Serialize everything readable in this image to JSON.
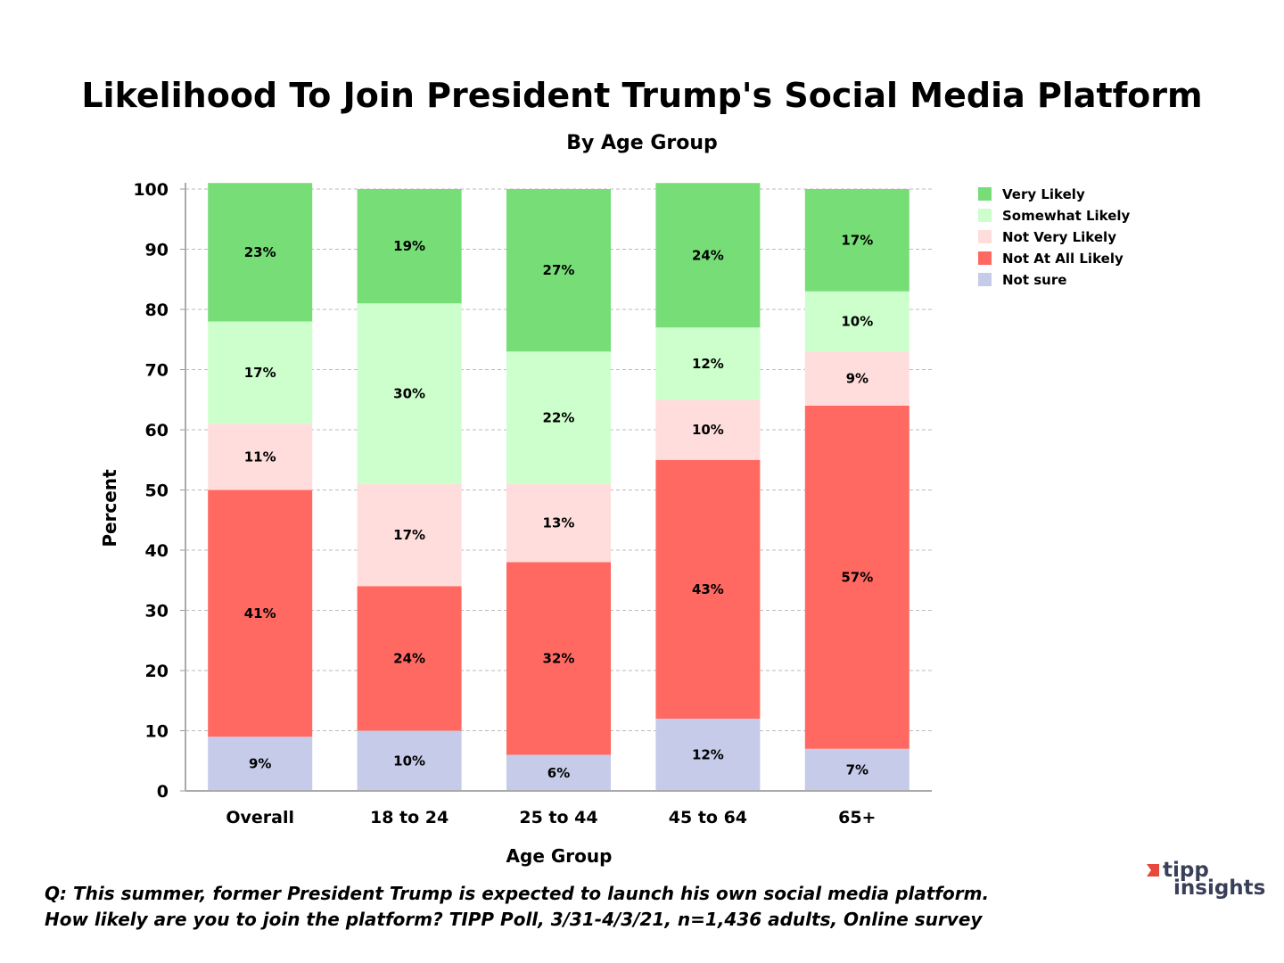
{
  "chart_data": {
    "type": "bar",
    "stacked": true,
    "title": "Likelihood To Join President Trump's Social Media Platform",
    "subtitle": "By Age Group",
    "xlabel": "Age Group",
    "ylabel": "Percent",
    "ylim": [
      0,
      100
    ],
    "yticks": [
      0,
      10,
      20,
      30,
      40,
      50,
      60,
      70,
      80,
      90,
      100
    ],
    "grid": true,
    "legend_position": "right",
    "categories": [
      "Overall",
      "18 to 24",
      "25 to 44",
      "45 to 64",
      "65+"
    ],
    "series": [
      {
        "name": "Not sure",
        "color": "#c5cbe8",
        "values": [
          9,
          10,
          6,
          12,
          7
        ]
      },
      {
        "name": "Not At All Likely",
        "color": "#ff6961",
        "values": [
          41,
          24,
          32,
          43,
          57
        ]
      },
      {
        "name": "Not Very Likely",
        "color": "#ffdddd",
        "values": [
          11,
          17,
          13,
          10,
          9
        ]
      },
      {
        "name": "Somewhat Likely",
        "color": "#ccffcc",
        "values": [
          17,
          30,
          22,
          12,
          10
        ]
      },
      {
        "name": "Very Likely",
        "color": "#77dd77",
        "values": [
          23,
          19,
          27,
          24,
          17
        ]
      }
    ],
    "legend_order": [
      "Very Likely",
      "Somewhat Likely",
      "Not Very Likely",
      "Not At All Likely",
      "Not sure"
    ],
    "label_suffix": "%"
  },
  "footnote": {
    "line1": "Q:  This summer, former President Trump is expected to launch his own social media platform.",
    "line2": "How likely are you to join the platform? TIPP Poll, 3/31-4/3/21, n=1,436 adults, Online survey"
  },
  "logo": {
    "line1": "tipp",
    "line2": "insights",
    "accent": "#e8473c"
  }
}
